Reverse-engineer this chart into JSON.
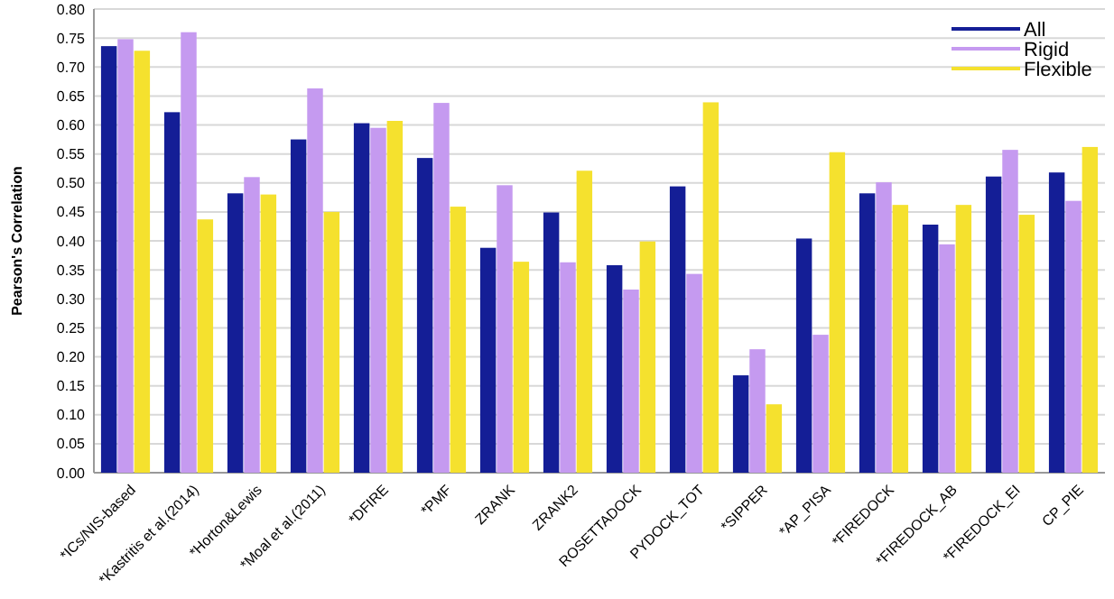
{
  "chart_data": {
    "type": "bar",
    "ylabel": "Pearson's Correlation",
    "categories": [
      "*ICs/NIS-based",
      "*Kastritis et al.(2014)",
      "*Horton&Lewis",
      "*Moal et al.(2011)",
      "*DFIRE",
      "*PMF",
      "ZRANK",
      "ZRANK2",
      "ROSETTADOCK",
      "PYDOCK_TOT",
      "*SIPPER",
      "*AP_PISA",
      "*FIREDOCK",
      "*FIREDOCK_AB",
      "*FIREDOCK_EI",
      "CP_PIE"
    ],
    "series": [
      {
        "name": "All",
        "color": "#141e96",
        "values": [
          0.736,
          0.622,
          0.482,
          0.575,
          0.603,
          0.543,
          0.388,
          0.449,
          0.358,
          0.494,
          0.168,
          0.404,
          0.482,
          0.428,
          0.511,
          0.518
        ]
      },
      {
        "name": "Rigid",
        "color": "#c59af0",
        "values": [
          0.748,
          0.76,
          0.51,
          0.663,
          0.595,
          0.638,
          0.496,
          0.363,
          0.316,
          0.343,
          0.213,
          0.238,
          0.501,
          0.394,
          0.557,
          0.469
        ]
      },
      {
        "name": "Flexible",
        "color": "#f5e12e",
        "values": [
          0.728,
          0.437,
          0.48,
          0.45,
          0.607,
          0.459,
          0.364,
          0.521,
          0.399,
          0.639,
          0.118,
          0.553,
          0.462,
          0.462,
          0.445,
          0.562
        ]
      }
    ],
    "ylim": [
      0,
      0.8
    ],
    "yticks": [
      {
        "value": 0,
        "label": "0.00"
      },
      {
        "value": 0.05,
        "label": "0.05"
      },
      {
        "value": 0.1,
        "label": "0.10"
      },
      {
        "value": 0.15,
        "label": "0.15"
      },
      {
        "value": 0.2,
        "label": "0.20"
      },
      {
        "value": 0.25,
        "label": "0.25"
      },
      {
        "value": 0.3,
        "label": "0.30"
      },
      {
        "value": 0.35,
        "label": "0.35"
      },
      {
        "value": 0.4,
        "label": "0.40"
      },
      {
        "value": 0.45,
        "label": "0.45"
      },
      {
        "value": 0.5,
        "label": "0.50"
      },
      {
        "value": 0.55,
        "label": "0.55"
      },
      {
        "value": 0.6,
        "label": "0.60"
      },
      {
        "value": 0.65,
        "label": "0.65"
      },
      {
        "value": 0.7,
        "label": "0.70"
      },
      {
        "value": 0.75,
        "label": "0.75"
      },
      {
        "value": 0.8,
        "label": "0.80"
      }
    ],
    "grid": "y",
    "legend": "top right"
  }
}
